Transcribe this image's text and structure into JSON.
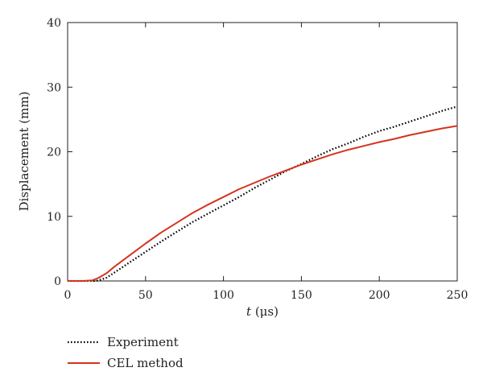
{
  "chart_data": {
    "type": "line",
    "title": "",
    "xlabel_italic": "t",
    "xlabel_rest": " (μs)",
    "ylabel": "Displacement (mm)",
    "xlim": [
      0,
      250
    ],
    "ylim": [
      0,
      40
    ],
    "xticks": [
      0,
      50,
      100,
      150,
      200,
      250
    ],
    "yticks": [
      0,
      10,
      20,
      30,
      40
    ],
    "grid": false,
    "legend_position": "bottom-left, below plot",
    "series": [
      {
        "name": "Experiment",
        "color": "#000000",
        "style": "dotted",
        "points": [
          [
            0,
            0
          ],
          [
            10,
            0
          ],
          [
            18,
            0
          ],
          [
            20,
            0.1
          ],
          [
            25,
            0.5
          ],
          [
            30,
            1.3
          ],
          [
            40,
            2.9
          ],
          [
            50,
            4.5
          ],
          [
            60,
            6.1
          ],
          [
            70,
            7.6
          ],
          [
            80,
            9.1
          ],
          [
            90,
            10.4
          ],
          [
            100,
            11.7
          ],
          [
            110,
            13.0
          ],
          [
            120,
            14.4
          ],
          [
            130,
            15.7
          ],
          [
            140,
            17.0
          ],
          [
            150,
            18.1
          ],
          [
            160,
            19.3
          ],
          [
            170,
            20.4
          ],
          [
            180,
            21.3
          ],
          [
            190,
            22.3
          ],
          [
            200,
            23.2
          ],
          [
            210,
            23.9
          ],
          [
            220,
            24.7
          ],
          [
            230,
            25.5
          ],
          [
            240,
            26.3
          ],
          [
            250,
            27.0
          ]
        ]
      },
      {
        "name": "CEL method",
        "color": "#d6321e",
        "style": "solid",
        "points": [
          [
            0,
            0
          ],
          [
            10,
            0
          ],
          [
            16,
            0.1
          ],
          [
            20,
            0.5
          ],
          [
            25,
            1.2
          ],
          [
            30,
            2.2
          ],
          [
            40,
            4.0
          ],
          [
            50,
            5.8
          ],
          [
            60,
            7.5
          ],
          [
            70,
            9.0
          ],
          [
            80,
            10.5
          ],
          [
            90,
            11.8
          ],
          [
            100,
            13.0
          ],
          [
            110,
            14.2
          ],
          [
            120,
            15.2
          ],
          [
            130,
            16.2
          ],
          [
            140,
            17.1
          ],
          [
            150,
            18.0
          ],
          [
            160,
            18.8
          ],
          [
            170,
            19.6
          ],
          [
            180,
            20.3
          ],
          [
            190,
            20.9
          ],
          [
            200,
            21.5
          ],
          [
            210,
            22.0
          ],
          [
            220,
            22.6
          ],
          [
            230,
            23.1
          ],
          [
            240,
            23.6
          ],
          [
            250,
            24.0
          ]
        ]
      }
    ]
  }
}
